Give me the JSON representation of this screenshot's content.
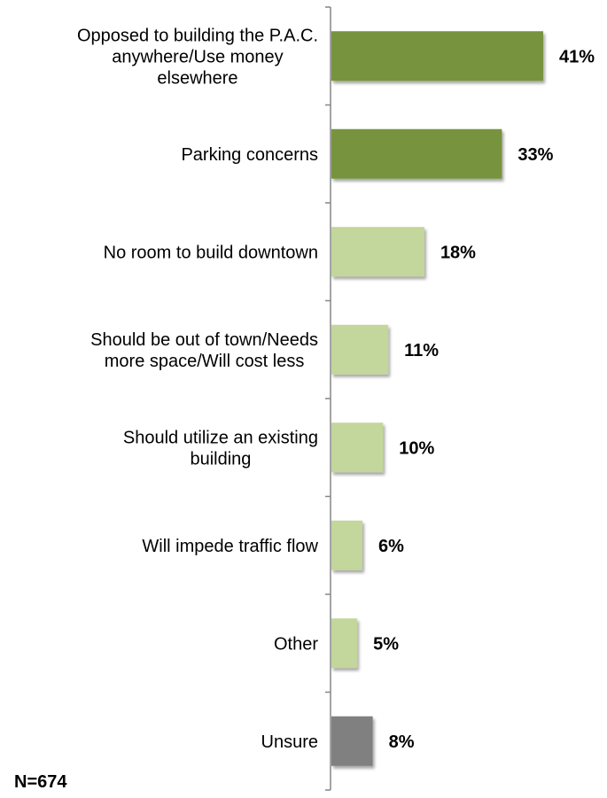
{
  "chart_data": {
    "type": "bar",
    "orientation": "horizontal",
    "categories": [
      "Opposed to building the P.A.C. anywhere/Use money elsewhere",
      "Parking concerns",
      "No room to build downtown",
      "Should be out of town/Needs more space/Will cost less",
      "Should utilize an existing building",
      "Will impede traffic flow",
      "Other",
      "Unsure"
    ],
    "label_lines": [
      [
        "Opposed to building the P.A.C.",
        "anywhere/Use money",
        "elsewhere"
      ],
      [
        "Parking concerns"
      ],
      [
        "No room to build downtown"
      ],
      [
        "Should be out of town/Needs",
        "more space/Will cost less"
      ],
      [
        "Should utilize an existing",
        "building"
      ],
      [
        "Will impede traffic flow"
      ],
      [
        "Other"
      ],
      [
        "Unsure"
      ]
    ],
    "values": [
      41,
      33,
      18,
      11,
      10,
      6,
      5,
      8
    ],
    "value_labels": [
      "41%",
      "33%",
      "18%",
      "11%",
      "10%",
      "6%",
      "5%",
      "8%"
    ],
    "bar_colors": [
      "#77933C",
      "#77933C",
      "#C3D69B",
      "#C3D69B",
      "#C3D69B",
      "#C3D69B",
      "#C3D69B",
      "#808080"
    ],
    "xlim": [
      0,
      45
    ],
    "title": "",
    "xlabel": "",
    "ylabel": "",
    "grid": false,
    "legend": "none"
  },
  "note": "N=674"
}
